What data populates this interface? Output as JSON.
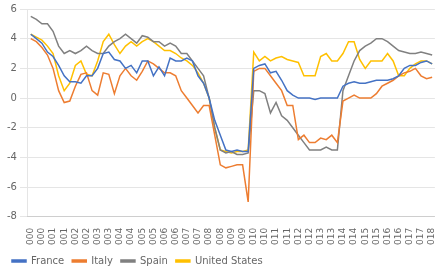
{
  "chart_data": {
    "type": "line",
    "categories": [
      "000",
      null,
      "000",
      null,
      "001",
      null,
      "001",
      null,
      "002",
      null,
      "002",
      null,
      "003",
      null,
      "003",
      null,
      "004",
      null,
      "004",
      null,
      "005",
      null,
      "005",
      null,
      "006",
      null,
      "006",
      null,
      "007",
      null,
      "007",
      null,
      "008",
      null,
      "008",
      null,
      "009",
      null,
      "009",
      null,
      "010",
      null,
      "010",
      null,
      "011",
      null,
      "011",
      null,
      "012",
      null,
      "012",
      null,
      "013",
      null,
      "013",
      null,
      "014",
      null,
      "014",
      null,
      "015",
      null,
      "015",
      null,
      "016",
      null,
      "016",
      null,
      "017",
      null,
      "017",
      null,
      "018"
    ],
    "series": [
      {
        "name": "France",
        "color": "#4472C4",
        "values": [
          4.3,
          4.0,
          3.7,
          3.1,
          2.8,
          2.2,
          1.5,
          1.1,
          1.1,
          1.0,
          1.5,
          1.5,
          2.0,
          3.0,
          3.1,
          2.6,
          2.5,
          2.0,
          2.2,
          1.7,
          2.5,
          2.5,
          1.5,
          2.1,
          1.5,
          2.7,
          2.5,
          2.5,
          2.7,
          2.5,
          1.5,
          1.0,
          0.0,
          -1.5,
          -2.5,
          -3.5,
          -3.6,
          -3.5,
          -3.6,
          -3.6,
          2.0,
          2.2,
          2.3,
          1.7,
          1.8,
          1.2,
          0.5,
          0.2,
          0.0,
          0.0,
          0.0,
          -0.1,
          0.0,
          0.0,
          0.0,
          0.0,
          0.8,
          1.0,
          1.1,
          1.0,
          1.0,
          1.1,
          1.2,
          1.2,
          1.2,
          1.3,
          1.5,
          2.0,
          2.2,
          2.2,
          2.4,
          2.5,
          2.3
        ]
      },
      {
        "name": "Italy",
        "color": "#ED7D31",
        "values": [
          4.0,
          3.8,
          3.4,
          2.9,
          2.0,
          0.5,
          -0.3,
          -0.2,
          0.8,
          1.6,
          1.7,
          0.5,
          0.2,
          1.7,
          1.6,
          0.3,
          1.5,
          2.0,
          1.5,
          1.2,
          1.8,
          2.5,
          2.3,
          2.0,
          1.7,
          1.7,
          1.5,
          0.5,
          0.0,
          -0.5,
          -1.0,
          -0.5,
          -0.5,
          -2.5,
          -4.5,
          -4.7,
          -4.6,
          -4.5,
          -4.5,
          -7.0,
          1.8,
          2.0,
          2.0,
          1.5,
          1.0,
          0.5,
          -0.5,
          -0.5,
          -2.8,
          -2.5,
          -3.0,
          -3.0,
          -2.7,
          -2.8,
          -2.5,
          -3.0,
          -0.2,
          0.0,
          0.2,
          0.0,
          0.0,
          0.0,
          0.3,
          0.8,
          1.0,
          1.2,
          1.5,
          1.7,
          1.8,
          2.0,
          1.5,
          1.3,
          1.4
        ]
      },
      {
        "name": "Spain",
        "color": "#808080",
        "values": [
          5.5,
          5.3,
          5.0,
          5.0,
          4.5,
          3.5,
          3.0,
          3.2,
          3.0,
          3.2,
          3.5,
          3.2,
          3.0,
          3.0,
          3.5,
          3.8,
          4.0,
          4.3,
          4.0,
          3.7,
          4.2,
          4.1,
          3.8,
          3.8,
          3.5,
          3.7,
          3.5,
          3.0,
          3.0,
          2.5,
          2.0,
          1.5,
          0.0,
          -2.0,
          -3.5,
          -3.7,
          -3.6,
          -3.8,
          -3.8,
          -3.7,
          0.5,
          0.5,
          0.3,
          -1.0,
          -0.3,
          -1.2,
          -1.5,
          -2.0,
          -2.5,
          -3.0,
          -3.5,
          -3.5,
          -3.5,
          -3.3,
          -3.5,
          -3.5,
          0.5,
          1.5,
          2.5,
          3.2,
          3.5,
          3.7,
          4.0,
          4.0,
          3.8,
          3.5,
          3.2,
          3.1,
          3.0,
          3.0,
          3.1,
          3.0,
          2.9
        ]
      },
      {
        "name": "United States",
        "color": "#FFC000",
        "values": [
          4.3,
          4.1,
          3.9,
          3.5,
          3.0,
          1.5,
          0.5,
          1.0,
          2.2,
          2.5,
          1.6,
          1.5,
          2.5,
          3.8,
          4.3,
          3.6,
          3.0,
          3.5,
          3.8,
          3.5,
          3.8,
          4.0,
          3.8,
          3.5,
          3.2,
          3.2,
          3.0,
          2.7,
          2.5,
          2.2,
          1.7,
          1.0,
          0.0,
          -2.0,
          -3.5,
          -3.6,
          -3.7,
          -3.6,
          -3.6,
          -3.5,
          3.1,
          2.5,
          2.8,
          2.5,
          2.7,
          2.8,
          2.6,
          2.5,
          2.4,
          1.5,
          1.5,
          1.5,
          2.8,
          3.0,
          2.5,
          2.5,
          3.0,
          3.8,
          3.8,
          2.6,
          2.0,
          2.5,
          2.5,
          2.5,
          3.0,
          2.5,
          1.5,
          1.5,
          2.0,
          2.3,
          2.5,
          2.5,
          2.3
        ]
      }
    ],
    "ylim": [
      -8,
      6
    ],
    "yticks": [
      -8,
      -6,
      -4,
      -2,
      0,
      2,
      4,
      6
    ],
    "grid": "y",
    "legend": "lower left"
  }
}
